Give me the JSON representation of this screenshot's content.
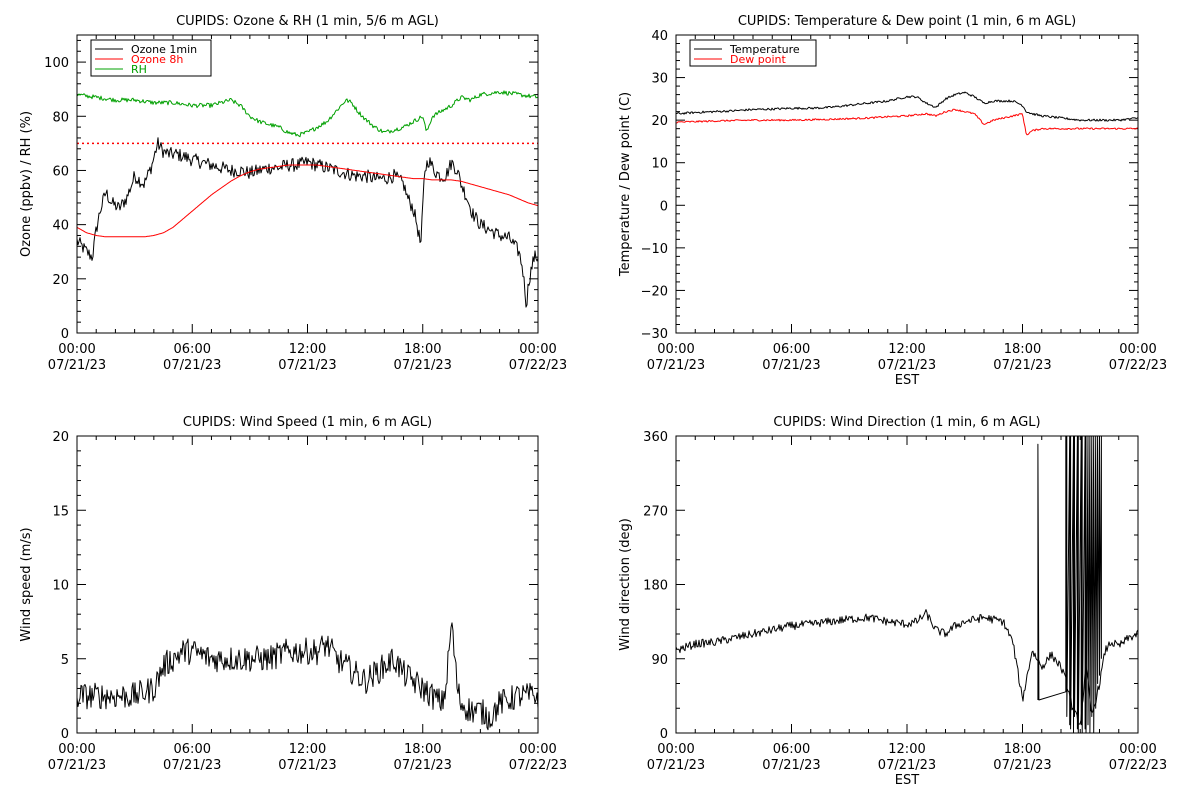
{
  "chart_data": [
    {
      "type": "line",
      "title": "CUPIDS: Ozone & RH (1 min, 5/6 m AGL)",
      "ylabel": "Ozone (ppbv) / RH (%)",
      "xlabel": "",
      "ylim": [
        0,
        110
      ],
      "yticks": [
        "0",
        "20",
        "40",
        "60",
        "80",
        "100"
      ],
      "xticks": [
        [
          "00:00",
          "07/21/23"
        ],
        [
          "06:00",
          "07/21/23"
        ],
        [
          "12:00",
          "07/21/23"
        ],
        [
          "18:00",
          "07/21/23"
        ],
        [
          "00:00",
          "07/22/23"
        ]
      ],
      "legend": "top-left",
      "reference_line": {
        "y": 70,
        "color": "#ff0000",
        "style": "dotted"
      },
      "series": [
        {
          "name": "Ozone 1min",
          "color": "#000000",
          "noise": 2.5,
          "x": [
            0,
            0.5,
            0.8,
            1.0,
            1.2,
            1.5,
            1.8,
            2.2,
            2.6,
            3.0,
            3.5,
            3.9,
            4.2,
            4.5,
            4.8,
            5.2,
            5.6,
            6.0,
            6.5,
            7.0,
            7.5,
            8.0,
            8.5,
            9.0,
            9.5,
            10.0,
            10.5,
            11.0,
            11.5,
            12.0,
            12.5,
            13.0,
            13.5,
            14.0,
            14.5,
            15.0,
            15.5,
            16.0,
            16.5,
            17.0,
            17.2,
            17.5,
            17.7,
            17.9,
            18.1,
            18.3,
            18.6,
            18.9,
            19.2,
            19.5,
            19.8,
            20.0,
            20.3,
            20.6,
            21.0,
            21.5,
            22.0,
            22.5,
            23.0,
            23.2,
            23.4,
            23.5,
            23.6,
            23.8,
            24.0
          ],
          "y": [
            34,
            30,
            28,
            38,
            45,
            52,
            48,
            46,
            50,
            58,
            55,
            62,
            70,
            67,
            66,
            66,
            65,
            64,
            63,
            62,
            61,
            60,
            60,
            59,
            60,
            61,
            61,
            62,
            62,
            63,
            62,
            61,
            60,
            59,
            58,
            58,
            57,
            57,
            58,
            55,
            50,
            46,
            40,
            32,
            60,
            64,
            60,
            58,
            58,
            63,
            60,
            55,
            50,
            44,
            40,
            38,
            36,
            35,
            30,
            24,
            10,
            18,
            22,
            28,
            28
          ]
        },
        {
          "name": "Ozone 8h",
          "color": "#ff0000",
          "noise": 0,
          "x": [
            0,
            0.5,
            1.0,
            1.5,
            2.0,
            2.5,
            3.0,
            3.5,
            4.0,
            4.5,
            5.0,
            5.5,
            6.0,
            6.5,
            7.0,
            7.5,
            8.0,
            8.5,
            9.0,
            9.5,
            10.0,
            10.5,
            11.0,
            11.5,
            12.0,
            12.5,
            13.0,
            13.5,
            14.0,
            14.5,
            15.0,
            15.5,
            16.0,
            16.5,
            17.0,
            17.5,
            18.0,
            18.5,
            19.0,
            19.5,
            20.0,
            20.5,
            21.0,
            21.5,
            22.0,
            22.5,
            23.0,
            23.5,
            24.0
          ],
          "y": [
            39,
            37,
            36,
            35.5,
            35.5,
            35.5,
            35.5,
            35.5,
            36,
            37,
            39,
            42,
            45,
            48,
            51,
            53.5,
            56,
            58,
            59.5,
            60.5,
            61,
            61.5,
            62,
            62,
            62,
            62,
            61.5,
            61,
            60.5,
            60,
            59.5,
            59,
            58.5,
            58,
            57.5,
            57,
            57,
            56.5,
            56.5,
            56.5,
            56,
            55,
            54,
            53,
            52,
            51,
            49.5,
            48,
            47
          ]
        },
        {
          "name": "RH",
          "color": "#00a000",
          "noise": 0.8,
          "x": [
            0,
            1,
            2,
            3,
            4,
            5,
            6,
            7,
            8,
            8.5,
            9,
            9.5,
            10,
            10.5,
            11,
            11.5,
            12,
            12.5,
            13,
            13.5,
            14,
            14.3,
            14.6,
            15,
            15.5,
            16,
            16.5,
            17,
            17.5,
            18,
            18.2,
            18.5,
            19,
            19.5,
            20,
            20.5,
            21,
            22,
            23,
            24
          ],
          "y": [
            88,
            87,
            86,
            86,
            85,
            85,
            84,
            84,
            86,
            84,
            80,
            78,
            77,
            76,
            74,
            73,
            74,
            76,
            78,
            82,
            86,
            85,
            82,
            79,
            76,
            74,
            75,
            76,
            78,
            80,
            74,
            80,
            82,
            84,
            87,
            86,
            88,
            89,
            88,
            87
          ]
        }
      ]
    },
    {
      "type": "line",
      "title": "CUPIDS: Temperature & Dew point (1 min, 6 m AGL)",
      "ylabel": "Temperature / Dew point (C)",
      "xlabel": "EST",
      "ylim": [
        -30,
        40
      ],
      "yticks": [
        "−30",
        "−20",
        "−10",
        "0",
        "10",
        "20",
        "30",
        "40"
      ],
      "xticks": [
        [
          "00:00",
          "07/21/23"
        ],
        [
          "06:00",
          "07/21/23"
        ],
        [
          "12:00",
          "07/21/23"
        ],
        [
          "18:00",
          "07/21/23"
        ],
        [
          "00:00",
          "07/22/23"
        ]
      ],
      "legend": "top-left",
      "series": [
        {
          "name": "Temperature",
          "color": "#000000",
          "noise": 0.25,
          "x": [
            0,
            1,
            2,
            3,
            4,
            5,
            6,
            7,
            8,
            9,
            10,
            11,
            11.5,
            12,
            12.5,
            13,
            13.5,
            14,
            14.5,
            15,
            15.5,
            16,
            16.5,
            17,
            17.5,
            18,
            18.2,
            18.5,
            19,
            20,
            21,
            22,
            23,
            24
          ],
          "y": [
            21.5,
            21.8,
            22,
            22.2,
            22.5,
            22.6,
            22.8,
            22.8,
            23,
            23.5,
            24,
            24.5,
            25,
            25.5,
            25.5,
            24,
            23,
            25,
            26,
            26.5,
            25.5,
            24,
            24.5,
            24.5,
            24.5,
            23.5,
            22,
            21.5,
            21,
            20.5,
            20,
            20,
            20,
            20.5
          ]
        },
        {
          "name": "Dew point",
          "color": "#ff0000",
          "noise": 0.2,
          "x": [
            0,
            2,
            4,
            6,
            8,
            10,
            11,
            12,
            13,
            13.5,
            14,
            14.5,
            15,
            15.5,
            16,
            16.5,
            17,
            17.5,
            18,
            18.2,
            18.5,
            19,
            20,
            21,
            22,
            23,
            24
          ],
          "y": [
            19.5,
            19.8,
            20,
            20,
            20.2,
            20.5,
            20.8,
            21,
            21.5,
            21,
            22,
            22.5,
            22,
            21.5,
            19,
            20,
            20.5,
            21,
            21.5,
            16.5,
            17.5,
            18,
            18,
            18,
            18,
            18,
            18
          ]
        }
      ]
    },
    {
      "type": "line",
      "title": "CUPIDS: Wind Speed (1 min, 6 m AGL)",
      "ylabel": "Wind speed (m/s)",
      "xlabel": "",
      "ylim": [
        0,
        20
      ],
      "yticks": [
        "0",
        "5",
        "10",
        "15",
        "20"
      ],
      "xticks": [
        [
          "00:00",
          "07/21/23"
        ],
        [
          "06:00",
          "07/21/23"
        ],
        [
          "12:00",
          "07/21/23"
        ],
        [
          "18:00",
          "07/21/23"
        ],
        [
          "00:00",
          "07/22/23"
        ]
      ],
      "series": [
        {
          "name": "",
          "color": "#000000",
          "noise": 0.9,
          "x": [
            0,
            1,
            2,
            3,
            4,
            4.5,
            5,
            5.5,
            6,
            7,
            8,
            9,
            10,
            11,
            12,
            12.5,
            13,
            13.5,
            14,
            14.5,
            15,
            15.5,
            16,
            16.5,
            17,
            17.5,
            18,
            18.5,
            19,
            19.2,
            19.5,
            19.8,
            20,
            20.5,
            21,
            21.5,
            22,
            23,
            24
          ],
          "y": [
            2.5,
            2.5,
            2.5,
            2.5,
            3,
            4.5,
            5,
            5.5,
            5.5,
            5,
            5,
            5,
            5,
            5.5,
            5.5,
            5.5,
            6,
            5,
            4.5,
            4,
            3.5,
            4,
            4.5,
            5,
            4,
            3.5,
            3,
            2.5,
            2,
            3,
            7.5,
            3,
            2,
            1.5,
            1.5,
            1,
            2,
            2.5,
            2.5
          ]
        }
      ]
    },
    {
      "type": "line",
      "title": "CUPIDS: Wind Direction (1 min, 6 m AGL)",
      "ylabel": "Wind direction (deg)",
      "xlabel": "EST",
      "ylim": [
        0,
        360
      ],
      "yticks": [
        "0",
        "90",
        "180",
        "270",
        "360"
      ],
      "xticks": [
        [
          "00:00",
          "07/21/23"
        ],
        [
          "06:00",
          "07/21/23"
        ],
        [
          "12:00",
          "07/21/23"
        ],
        [
          "18:00",
          "07/21/23"
        ],
        [
          "00:00",
          "07/22/23"
        ]
      ],
      "series": [
        {
          "name": "",
          "color": "#000000",
          "noise": 5,
          "x": [
            0,
            1,
            2,
            3,
            4,
            5,
            6,
            7,
            8,
            9,
            10,
            11,
            12,
            12.5,
            13,
            13.5,
            14,
            14.5,
            15,
            16,
            17,
            17.5,
            18,
            18.5,
            19,
            19.5,
            20,
            20.3,
            20.6,
            21,
            21.3,
            21.6,
            22,
            22.3,
            22.6,
            23,
            23.5,
            24
          ],
          "y": [
            100,
            108,
            110,
            115,
            120,
            125,
            130,
            132,
            135,
            138,
            140,
            135,
            132,
            135,
            145,
            125,
            120,
            130,
            135,
            140,
            135,
            110,
            40,
            100,
            80,
            95,
            80,
            60,
            30,
            10,
            80,
            20,
            60,
            100,
            110,
            105,
            115,
            120
          ]
        },
        {
          "name": "",
          "color": "#000000",
          "noise": 0,
          "spikes": true,
          "x": [
            18.8,
            18.8,
            18.85,
            20.25,
            20.25,
            20.3,
            20.3,
            20.45,
            20.45,
            20.5,
            20.5,
            20.65,
            20.65,
            20.7,
            20.7,
            20.85,
            20.85,
            20.9,
            20.9,
            21.05,
            21.05,
            21.1,
            21.1,
            21.25,
            21.25,
            21.3,
            21.3,
            21.4,
            21.4,
            21.5,
            21.5,
            21.6,
            21.6,
            21.7,
            21.7,
            21.8,
            21.8,
            21.9,
            21.9,
            22.0,
            22.0,
            22.1,
            22.1
          ],
          "y": [
            40,
            350,
            40,
            50,
            360,
            360,
            20,
            360,
            10,
            360,
            5,
            360,
            0,
            360,
            20,
            360,
            5,
            360,
            0,
            360,
            10,
            360,
            0,
            360,
            5,
            360,
            0,
            360,
            10,
            360,
            0,
            360,
            20,
            360,
            0,
            360,
            30,
            360,
            60,
            360,
            70,
            360,
            90
          ]
        }
      ]
    }
  ]
}
